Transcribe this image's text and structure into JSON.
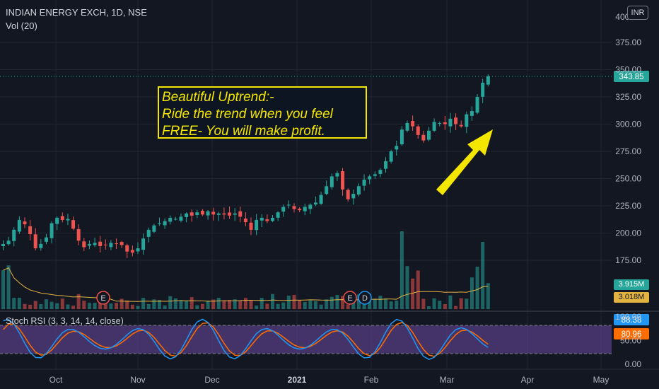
{
  "header": {
    "symbol_line": "INDIAN ENERGY EXCH, 1D, NSE",
    "volume_line": "Vol (20)"
  },
  "currency_badge": "INR",
  "annotation": {
    "lines": [
      "Beautiful Uptrend:-",
      "Ride the trend when you feel",
      "FREE- You will make profit."
    ],
    "color": "#f5e600"
  },
  "price_axis": {
    "ticks": [
      "375.00",
      "350.00",
      "325.00",
      "300.00",
      "275.00",
      "250.00",
      "225.00",
      "200.00",
      "175.00"
    ],
    "top_partial": "400.00"
  },
  "time_axis": {
    "labels": [
      "Oct",
      "Nov",
      "Dec",
      "2021",
      "Feb",
      "Mar",
      "Apr",
      "May"
    ]
  },
  "price_tags": {
    "last_price": "343.85",
    "volume": "3.915M",
    "volume_ma": "3.018M"
  },
  "rsi": {
    "label": "Stoch RSI (3, 3, 14, 14, close)",
    "k_value": "88.38",
    "d_value": "80.96",
    "ticks": [
      "100.00",
      "50.00",
      "0.00"
    ]
  },
  "events": [
    "E",
    "E",
    "D"
  ],
  "colors": {
    "up": "#26a69a",
    "down": "#ef5350",
    "rsi_k": "#2196f3",
    "rsi_d": "#ff6d00",
    "rsi_band": "#7e57c2"
  },
  "chart_data": {
    "type": "candlestick",
    "series": [
      {
        "name": "INDIAN ENERGY EXCH",
        "values": [
          190,
          193,
          203,
          212,
          208,
          199,
          186,
          190,
          196,
          209,
          214,
          212,
          213,
          204,
          193,
          187,
          190,
          191,
          188,
          189,
          191,
          190,
          189,
          183,
          182,
          186,
          195,
          203,
          207,
          209,
          211,
          214,
          213,
          215,
          218,
          216,
          219,
          217,
          220,
          217,
          218,
          217,
          216,
          218,
          215,
          210,
          203,
          212,
          214,
          211,
          214,
          219,
          224,
          226,
          222,
          221,
          224,
          226,
          228,
          235,
          243,
          252,
          255,
          240,
          231,
          236,
          243,
          249,
          252,
          254,
          258,
          266,
          275,
          280,
          295,
          301,
          298,
          290,
          285,
          294,
          302,
          301,
          300,
          305,
          300,
          298,
          309,
          312,
          325,
          338,
          344
        ]
      }
    ],
    "ylim": [
      150,
      400
    ]
  }
}
